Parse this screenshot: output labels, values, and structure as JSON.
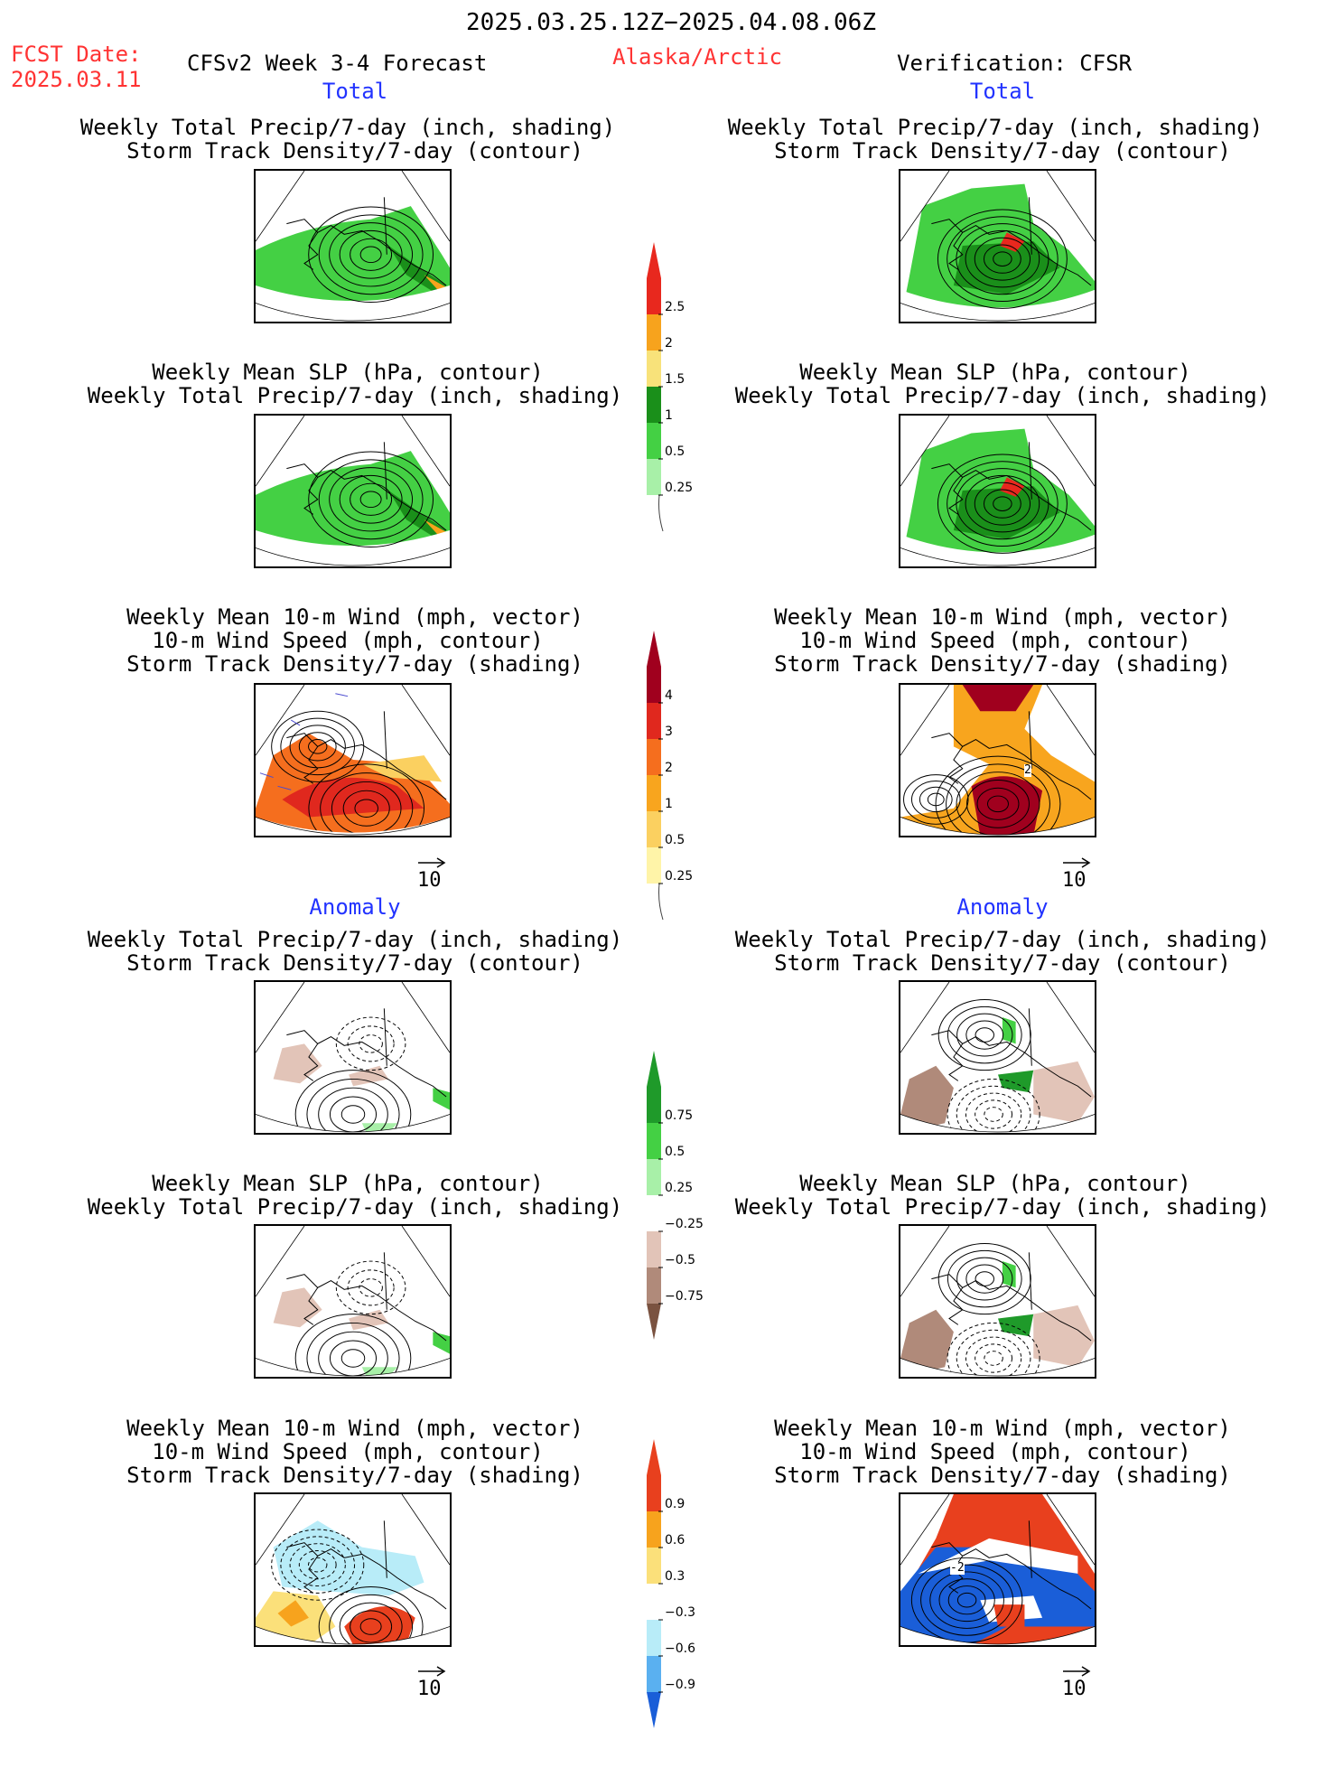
{
  "header": {
    "period": "2025.03.25.12Z−2025.04.08.06Z",
    "fcst_label": "FCST Date:",
    "fcst_date": "2025.03.11",
    "model": "CFSv2 Week 3-4 Forecast",
    "region": "Alaska/Arctic",
    "verification": "Verification: CFSR"
  },
  "sections": {
    "total": "Total",
    "anomaly": "Anomaly"
  },
  "panel_titles": {
    "precip": [
      "Weekly Total Precip/7-day (inch, shading)",
      "Storm Track Density/7-day (contour)"
    ],
    "slp": [
      "Weekly Mean SLP (hPa, contour)",
      "Weekly Total Precip/7-day (inch, shading)"
    ],
    "wind": [
      "Weekly Mean 10-m Wind (mph, vector)",
      "10-m Wind Speed (mph, contour)",
      "Storm Track Density/7-day (shading)"
    ]
  },
  "vector_ref": "10",
  "colorbars": {
    "precip_total": {
      "labels": [
        "2.5",
        "2",
        "1.5",
        "1",
        "0.5",
        "0.25"
      ],
      "colors": [
        "#e8281e",
        "#f7a31d",
        "#f8e27a",
        "#1a8f1a",
        "#44d044",
        "#a8f0a8"
      ]
    },
    "storm_total": {
      "labels": [
        "4",
        "3",
        "2",
        "1",
        "0.5",
        "0.25"
      ],
      "colors": [
        "#a0001e",
        "#e0281e",
        "#f56e1e",
        "#f8a51e",
        "#fbd060",
        "#fff4a8"
      ]
    },
    "precip_anom": {
      "labels": [
        "0.75",
        "0.5",
        "0.25",
        "−0.25",
        "−0.5",
        "−0.75"
      ],
      "colors": [
        "#1f9a2a",
        "#44d044",
        "#a8f0a8",
        "#ffffff",
        "#e2c4b8",
        "#b08a7a",
        "#7a5240"
      ]
    },
    "storm_anom": {
      "labels": [
        "0.9",
        "0.6",
        "0.3",
        "−0.3",
        "−0.6",
        "−0.9"
      ],
      "colors": [
        "#e8401e",
        "#f7a31d",
        "#fbe07a",
        "#ffffff",
        "#b8ecf8",
        "#5ab0f0",
        "#1a5ed8"
      ]
    }
  },
  "map_labels": {
    "obs_total_wind": "2",
    "obs_anom_wind": "-2"
  }
}
